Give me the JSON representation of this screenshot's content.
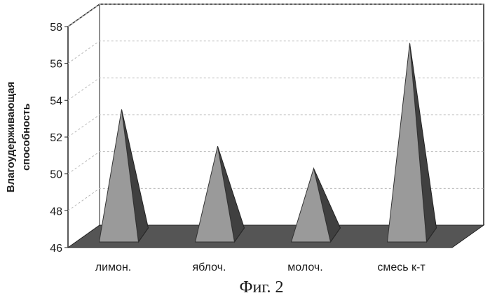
{
  "chart_data": {
    "type": "bar",
    "style": "3d-pyramid",
    "categories": [
      "лимон.",
      "яблоч.",
      "молоч.",
      "смесь к-т"
    ],
    "values": [
      53.5,
      51.5,
      50.3,
      57.1
    ],
    "ylim": [
      46,
      58
    ],
    "yticks": [
      46,
      48,
      50,
      52,
      54,
      56,
      58
    ],
    "ylabel_lines": [
      "Влагоудерживающая",
      "способность"
    ],
    "xlabel": "",
    "title": "",
    "grid": true,
    "legend": "none",
    "colors": {
      "pyramid_front": "#9a9a9a",
      "pyramid_side": "#404040",
      "floor": "#555555",
      "gridline": "#b8b8b8",
      "axis": "#222222"
    }
  },
  "caption": "Фиг. 2"
}
